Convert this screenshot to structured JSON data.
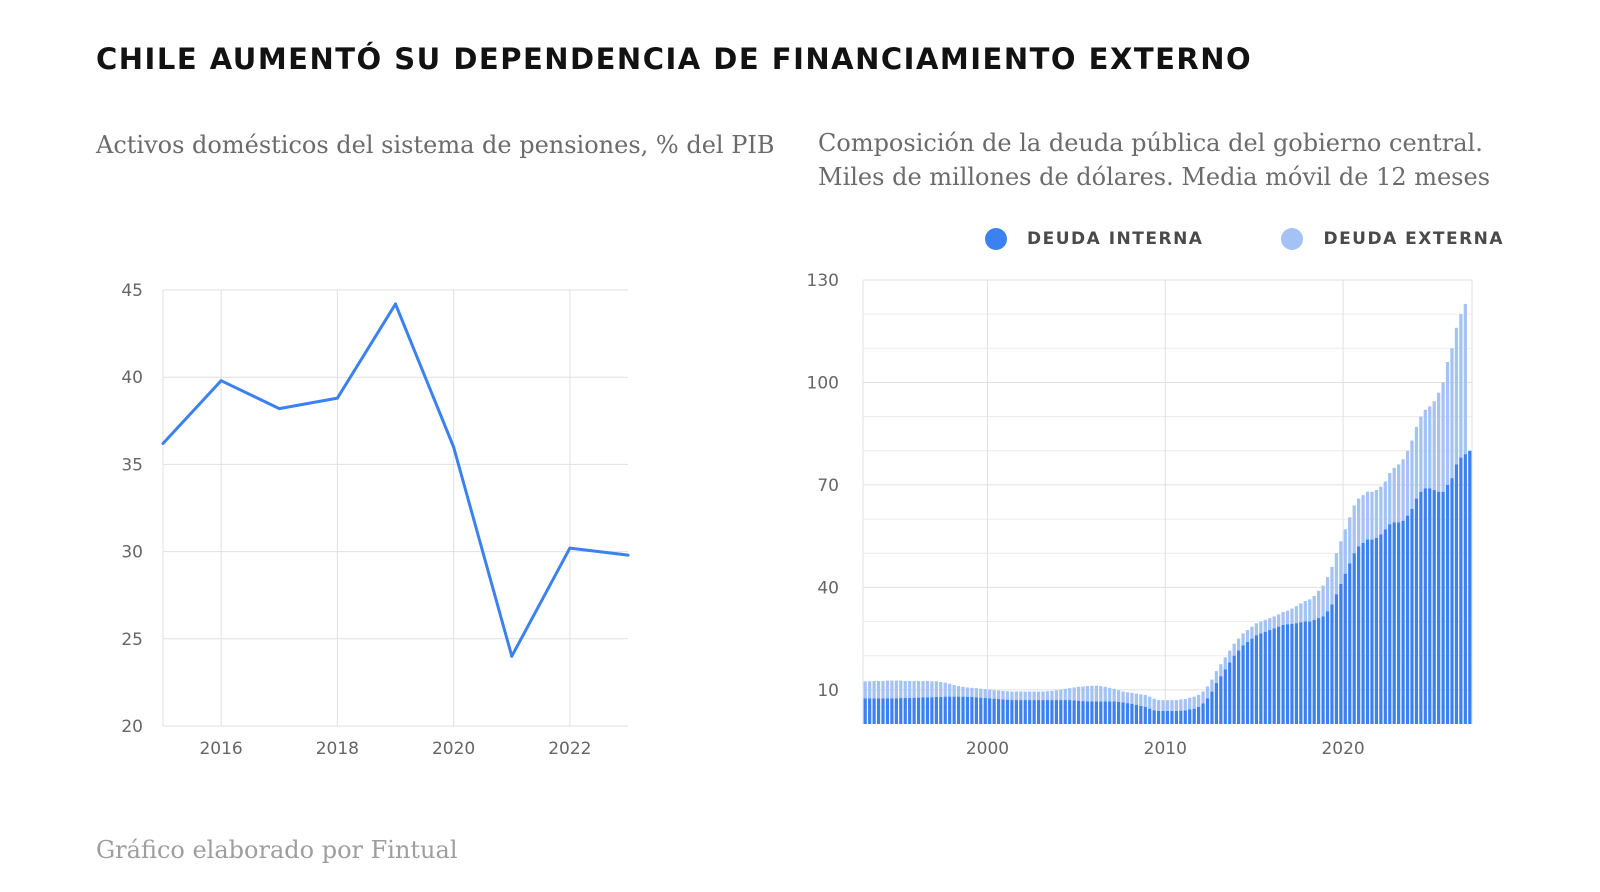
{
  "title": "CHILE AUMENTÓ SU DEPENDENCIA DE FINANCIAMIENTO EXTERNO",
  "left_subtitle": "Activos domésticos del sistema de pensiones, % del PIB",
  "right_subtitle_line1": "Composición de la deuda pública del gobierno central.",
  "right_subtitle_line2": "Miles de millones de dólares. Media móvil de 12 meses",
  "footer": "Gráfico elaborado por Fintual",
  "legend": {
    "internal": "DEUDA INTERNA",
    "external": "DEUDA EXTERNA"
  },
  "colors": {
    "line": "#3b82f0",
    "internal": "#3b82f0",
    "external": "#a4c2f4",
    "grid": "#e0e0e0"
  },
  "chart_data": [
    {
      "type": "line",
      "title": "Activos domésticos del sistema de pensiones, % del PIB",
      "x": [
        2015,
        2016,
        2017,
        2018,
        2019,
        2020,
        2021,
        2022,
        2023
      ],
      "series": [
        {
          "values": [
            36.2,
            39.8,
            38.2,
            38.8,
            44.2,
            36.0,
            24.0,
            30.2,
            29.8
          ]
        }
      ],
      "xlim": [
        2015,
        2023
      ],
      "ylim": [
        20,
        45
      ],
      "xticks": [
        "2016",
        "2018",
        "2020",
        "2022"
      ],
      "yticks": [
        "20",
        "25",
        "30",
        "35",
        "40",
        "45"
      ],
      "grid": true
    },
    {
      "type": "bar",
      "stacked": true,
      "title": "Composición de la deuda pública del gobierno central. Miles de millones de dólares. Media móvil de 12 meses",
      "x_start": 1993.0,
      "x_step": 0.25,
      "series": [
        {
          "name": "DEUDA INTERNA",
          "values": [
            7.5,
            7.5,
            7.5,
            7.5,
            7.5,
            7.5,
            7.5,
            7.5,
            7.6,
            7.6,
            7.6,
            7.7,
            7.7,
            7.8,
            7.8,
            7.8,
            7.9,
            7.9,
            8,
            8,
            8,
            8,
            8,
            7.9,
            7.9,
            7.8,
            7.7,
            7.6,
            7.5,
            7.4,
            7.3,
            7.2,
            7.1,
            7,
            7,
            7,
            7,
            7,
            7,
            7,
            7,
            7,
            7,
            7,
            7,
            7,
            7,
            6.9,
            6.8,
            6.7,
            6.6,
            6.6,
            6.6,
            6.6,
            6.6,
            6.6,
            6.6,
            6.5,
            6.3,
            6.1,
            5.9,
            5.6,
            5.3,
            5,
            4.5,
            4,
            3.8,
            3.8,
            3.8,
            3.8,
            3.8,
            3.9,
            4,
            4.3,
            4.5,
            5,
            6,
            7.5,
            9.5,
            12,
            14,
            16,
            18,
            20,
            21.5,
            23,
            24,
            25,
            26,
            26.5,
            27,
            27.5,
            28,
            28.5,
            29,
            29.2,
            29.3,
            29.5,
            29.8,
            30,
            30,
            30.5,
            31,
            31.5,
            33,
            35,
            38,
            41,
            44,
            47,
            50,
            52,
            53,
            54,
            54,
            54.5,
            55.5,
            57,
            58.5,
            59,
            59,
            59.5,
            61,
            63,
            66,
            68,
            69,
            69,
            68.5,
            68,
            68,
            70,
            72,
            76,
            78,
            79,
            80
          ]
        },
        {
          "name": "DEUDA EXTERNA",
          "values": [
            5,
            5,
            5.1,
            5.1,
            5.1,
            5.2,
            5.2,
            5.2,
            5.1,
            5,
            5,
            4.9,
            4.9,
            4.8,
            4.8,
            4.7,
            4.6,
            4.4,
            4.1,
            3.8,
            3.4,
            3.1,
            2.9,
            2.8,
            2.7,
            2.7,
            2.6,
            2.6,
            2.6,
            2.5,
            2.5,
            2.5,
            2.5,
            2.5,
            2.5,
            2.5,
            2.5,
            2.5,
            2.5,
            2.5,
            2.5,
            2.6,
            2.7,
            2.9,
            3.1,
            3.3,
            3.5,
            3.8,
            4.1,
            4.3,
            4.5,
            4.6,
            4.6,
            4.5,
            4.3,
            4,
            3.7,
            3.4,
            3.2,
            3.2,
            3.2,
            3.3,
            3.4,
            3.5,
            3.5,
            3.4,
            3.2,
            3.2,
            3.2,
            3.2,
            3.2,
            3.3,
            3.3,
            3.4,
            3.5,
            3.5,
            3.5,
            3.5,
            3.5,
            3.5,
            3.5,
            3.5,
            3.5,
            3.5,
            3.5,
            3.5,
            3.5,
            3.5,
            3.5,
            3.5,
            3.5,
            3.5,
            3.5,
            3.6,
            3.8,
            4,
            4.5,
            5,
            5.5,
            6,
            6.5,
            7,
            8,
            9,
            10,
            11,
            12,
            12.5,
            13,
            13.5,
            14,
            14,
            14,
            14,
            14,
            14,
            14,
            14,
            15,
            16,
            17,
            18,
            19,
            20,
            21,
            22,
            23,
            24,
            26,
            29,
            32,
            36,
            38,
            40,
            42,
            44
          ]
        }
      ],
      "ylim": [
        0,
        130
      ],
      "yticks": [
        "10",
        "40",
        "70",
        "100",
        "130"
      ],
      "xticks": [
        "2000",
        "2010",
        "2020"
      ],
      "grid": true,
      "legend_position": "top-right"
    }
  ]
}
